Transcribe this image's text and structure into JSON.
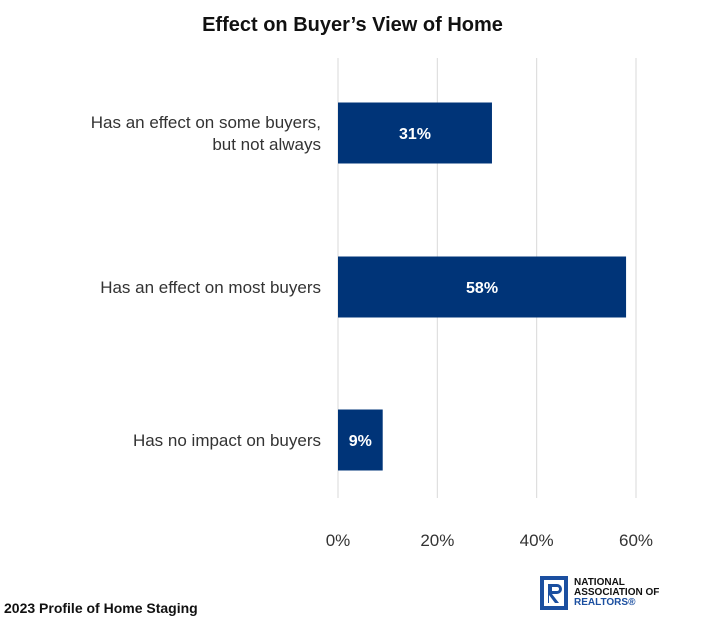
{
  "chart_data": {
    "type": "bar",
    "orientation": "horizontal",
    "title": "Effect on Buyer’s View of Home",
    "categories": [
      [
        "Has an effect on some buyers,",
        "but not always"
      ],
      [
        "Has an effect on most buyers"
      ],
      [
        "Has no impact on buyers"
      ]
    ],
    "values": [
      31,
      58,
      9
    ],
    "data_labels": [
      "31%",
      "58%",
      "9%"
    ],
    "xlim": [
      0,
      60
    ],
    "xticks": [
      0,
      20,
      40,
      60
    ],
    "xtick_labels": [
      "0%",
      "20%",
      "40%",
      "60%"
    ],
    "grid": true,
    "xlabel": "",
    "ylabel": ""
  },
  "colors": {
    "bar": "#003478",
    "grid": "#d9d9d9"
  },
  "footer": {
    "source": "2023 Profile of Home Staging",
    "logo_lines": [
      "NATIONAL",
      "ASSOCIATION OF",
      "REALTORS®"
    ],
    "logo_icon": "realtor-r-icon"
  }
}
